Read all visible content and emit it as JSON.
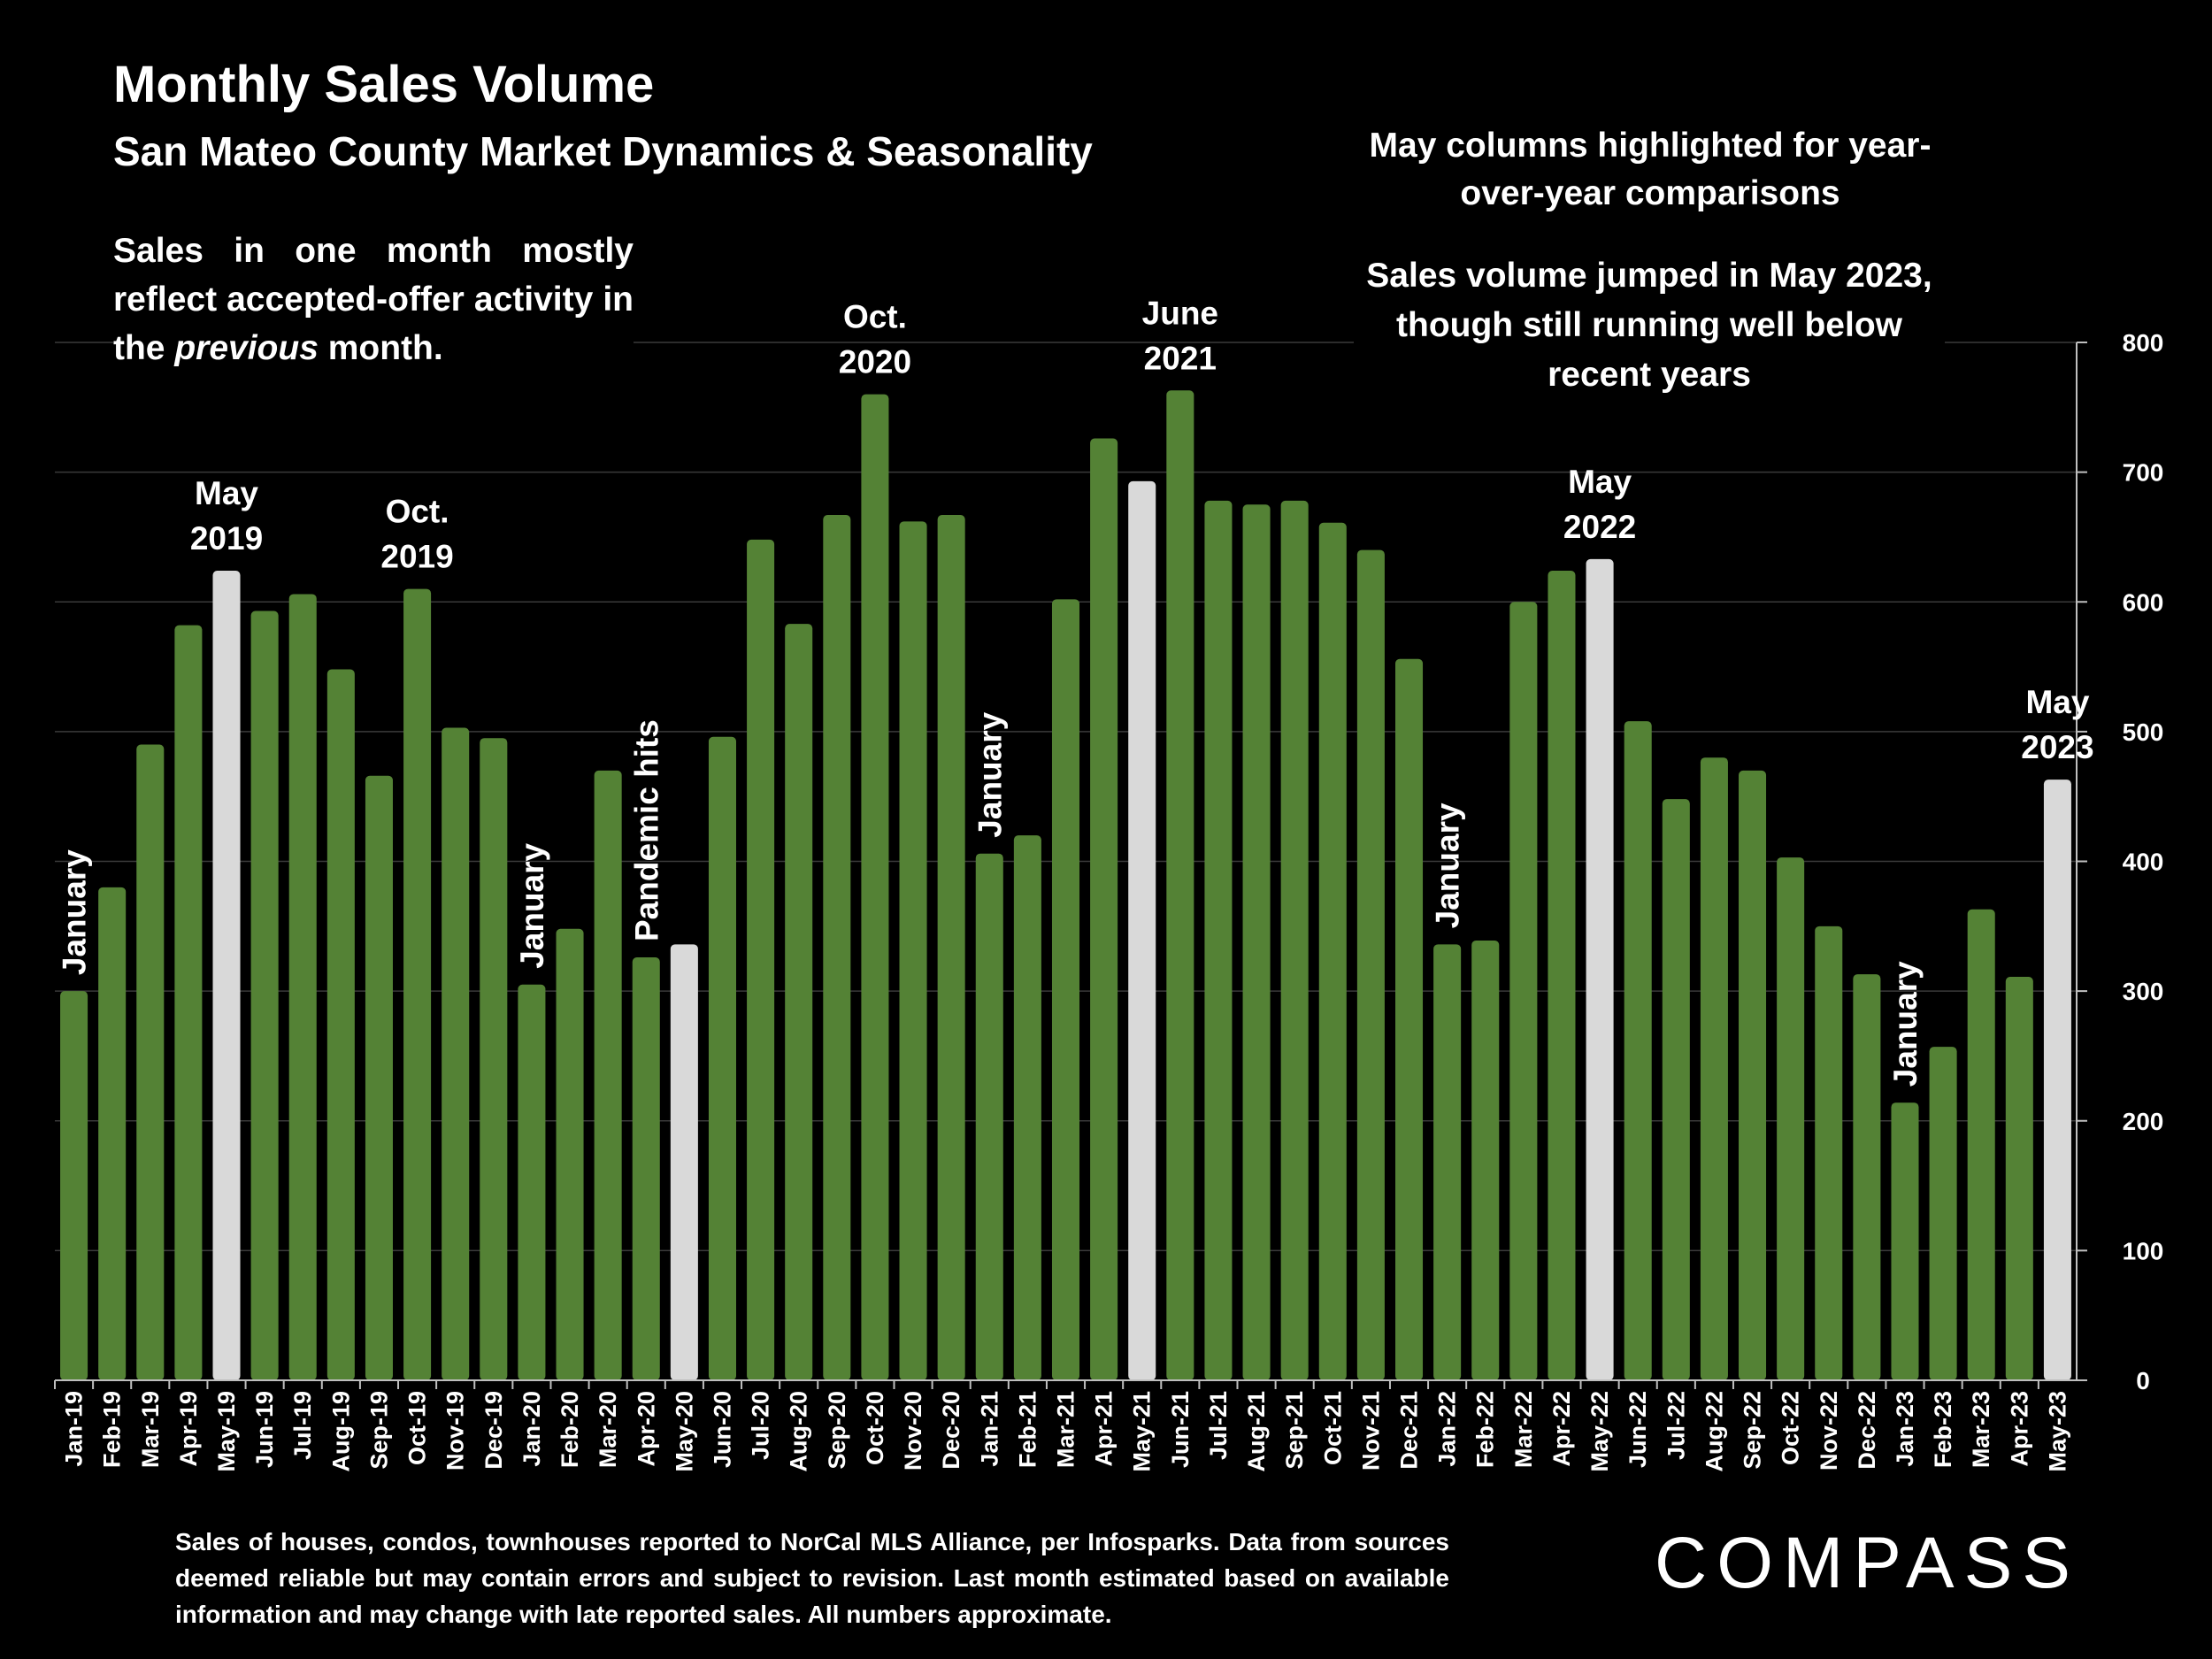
{
  "header": {
    "title": "Monthly Sales Volume",
    "subtitle": "San Mateo County Market Dynamics & Seasonality"
  },
  "notes": {
    "left_part1": "Sales in one month mostly reflect accepted-offer activity in the ",
    "left_italic": "previous",
    "left_part2": " month.",
    "right_highlight": "May columns highlighted for year-over-year comparisons",
    "right_jump": "Sales volume jumped in May 2023, though still running well below recent years"
  },
  "footer": {
    "source": "Sales of houses, condos, townhouses reported to NorCal MLS Alliance, per Infosparks. Data from sources deemed reliable but may contain errors and subject to revision. Last month estimated based on available information and may change with late reported sales. All numbers approximate.",
    "logo": "COMPASS"
  },
  "colors": {
    "bar": "#548235",
    "highlight": "#d9d9d9",
    "background": "#000000",
    "grid": "#3a3a3a",
    "text": "#ffffff"
  },
  "chart_data": {
    "type": "bar",
    "title": "Monthly Sales Volume",
    "ylim": [
      0,
      800
    ],
    "yticks": [
      0,
      100,
      200,
      300,
      400,
      500,
      600,
      700,
      800
    ],
    "y_axis_side": "right",
    "grid": true,
    "categories": [
      "Jan-19",
      "Feb-19",
      "Mar-19",
      "Apr-19",
      "May-19",
      "Jun-19",
      "Jul-19",
      "Aug-19",
      "Sep-19",
      "Oct-19",
      "Nov-19",
      "Dec-19",
      "Jan-20",
      "Feb-20",
      "Mar-20",
      "Apr-20",
      "May-20",
      "Jun-20",
      "Jul-20",
      "Aug-20",
      "Sep-20",
      "Oct-20",
      "Nov-20",
      "Dec-20",
      "Jan-21",
      "Feb-21",
      "Mar-21",
      "Apr-21",
      "May-21",
      "Jun-21",
      "Jul-21",
      "Aug-21",
      "Sep-21",
      "Oct-21",
      "Nov-21",
      "Dec-21",
      "Jan-22",
      "Feb-22",
      "Mar-22",
      "Apr-22",
      "May-22",
      "Jun-22",
      "Jul-22",
      "Aug-22",
      "Sep-22",
      "Oct-22",
      "Nov-22",
      "Dec-22",
      "Jan-23",
      "Feb-23",
      "Mar-23",
      "Apr-23",
      "May-23"
    ],
    "values": [
      300,
      380,
      490,
      582,
      624,
      593,
      606,
      548,
      466,
      610,
      503,
      495,
      305,
      348,
      470,
      326,
      336,
      496,
      648,
      583,
      667,
      760,
      662,
      667,
      406,
      420,
      602,
      726,
      693,
      763,
      678,
      675,
      678,
      661,
      640,
      556,
      336,
      339,
      600,
      624,
      633,
      508,
      448,
      480,
      470,
      403,
      350,
      313,
      214,
      257,
      363,
      311,
      463
    ],
    "highlighted": [
      "May-19",
      "May-20",
      "May-21",
      "May-22",
      "May-23"
    ],
    "annotations": [
      {
        "category": "Jan-19",
        "text": "January",
        "vertical": true
      },
      {
        "category": "May-19",
        "lines": [
          "May",
          "2019"
        ]
      },
      {
        "category": "Oct-19",
        "lines": [
          "Oct.",
          "2019"
        ]
      },
      {
        "category": "Jan-20",
        "text": "January",
        "vertical": true
      },
      {
        "category": "Apr-20",
        "text": "Pandemic hits",
        "vertical": true
      },
      {
        "category": "Oct-20",
        "lines": [
          "Oct.",
          "2020"
        ]
      },
      {
        "category": "Jan-21",
        "text": "January",
        "vertical": true
      },
      {
        "category": "Jun-21",
        "lines": [
          "June",
          "2021"
        ]
      },
      {
        "category": "Jan-22",
        "text": "January",
        "vertical": true
      },
      {
        "category": "May-22",
        "lines": [
          "May",
          "2022"
        ]
      },
      {
        "category": "Jan-23",
        "text": "January",
        "vertical": true
      },
      {
        "category": "May-23",
        "lines": [
          "May",
          "2023"
        ]
      }
    ]
  }
}
